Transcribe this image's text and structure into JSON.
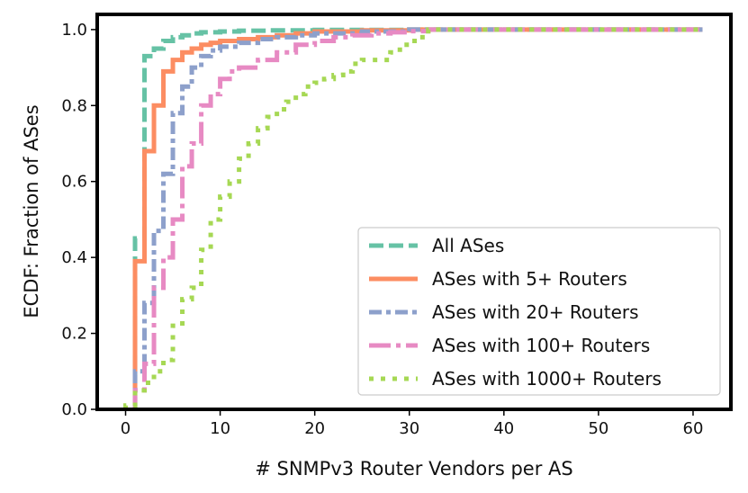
{
  "chart_data": {
    "type": "line",
    "title": "",
    "xlabel": "# SNMPv3 Router Vendors per AS",
    "ylabel": "ECDF: Fraction of ASes",
    "xlim": [
      -3,
      64
    ],
    "ylim": [
      0,
      1.04
    ],
    "xticks": [
      0,
      10,
      20,
      30,
      40,
      50,
      60
    ],
    "yticks": [
      0.0,
      0.2,
      0.4,
      0.6,
      0.8,
      1.0
    ],
    "ytick_labels": [
      "0.0",
      "0.2",
      "0.4",
      "0.6",
      "0.8",
      "1.0"
    ],
    "legend_position": "lower-right",
    "series": [
      {
        "name": "All ASes",
        "color": "#66c2a5",
        "style": "dashed",
        "x": [
          1,
          2,
          3,
          4,
          5,
          6,
          7,
          8,
          10,
          12,
          15,
          20,
          30,
          61
        ],
        "y": [
          0.45,
          0.93,
          0.95,
          0.97,
          0.98,
          0.985,
          0.99,
          0.993,
          0.995,
          0.997,
          0.998,
          0.999,
          1.0,
          1.0
        ]
      },
      {
        "name": "ASes with 5+ Routers",
        "color": "#fc8d62",
        "style": "solid",
        "x": [
          1,
          2,
          3,
          4,
          5,
          6,
          7,
          8,
          9,
          10,
          12,
          14,
          16,
          18,
          20,
          25,
          30,
          61
        ],
        "y": [
          0.39,
          0.68,
          0.8,
          0.89,
          0.92,
          0.94,
          0.95,
          0.96,
          0.965,
          0.97,
          0.975,
          0.98,
          0.985,
          0.99,
          0.995,
          0.998,
          1.0,
          1.0
        ]
      },
      {
        "name": "ASes with 20+ Routers",
        "color": "#8da0cb",
        "style": "dashdot",
        "x": [
          1,
          2,
          3,
          4,
          5,
          6,
          7,
          8,
          9,
          10,
          12,
          14,
          16,
          18,
          20,
          25,
          30,
          61
        ],
        "y": [
          0.1,
          0.28,
          0.47,
          0.62,
          0.78,
          0.85,
          0.9,
          0.93,
          0.945,
          0.955,
          0.965,
          0.975,
          0.98,
          0.985,
          0.99,
          0.995,
          1.0,
          1.0
        ]
      },
      {
        "name": "ASes with 100+ Routers",
        "color": "#e78ac3",
        "style": "longdashdot",
        "x": [
          1,
          2,
          3,
          4,
          5,
          6,
          7,
          8,
          9,
          10,
          11,
          12,
          14,
          16,
          18,
          20,
          22,
          24,
          26,
          28,
          30,
          32,
          61
        ],
        "y": [
          0.05,
          0.12,
          0.32,
          0.4,
          0.5,
          0.64,
          0.7,
          0.8,
          0.83,
          0.87,
          0.89,
          0.9,
          0.92,
          0.94,
          0.96,
          0.97,
          0.98,
          0.985,
          0.99,
          0.993,
          0.996,
          1.0,
          1.0
        ]
      },
      {
        "name": "ASes with 1000+ Routers",
        "color": "#a6d854",
        "style": "dotted",
        "x": [
          0,
          1,
          2,
          3,
          4,
          5,
          6,
          7,
          8,
          9,
          10,
          11,
          12,
          13,
          14,
          15,
          16,
          17,
          18,
          19,
          20,
          21,
          22,
          23,
          24,
          25,
          26,
          27,
          28,
          29,
          30,
          31,
          32,
          61
        ],
        "y": [
          0.01,
          0.05,
          0.07,
          0.1,
          0.13,
          0.22,
          0.29,
          0.32,
          0.42,
          0.5,
          0.56,
          0.6,
          0.66,
          0.7,
          0.74,
          0.77,
          0.79,
          0.81,
          0.83,
          0.85,
          0.86,
          0.87,
          0.88,
          0.89,
          0.91,
          0.92,
          0.92,
          0.92,
          0.94,
          0.96,
          0.97,
          0.98,
          1.0,
          1.0
        ]
      }
    ]
  }
}
